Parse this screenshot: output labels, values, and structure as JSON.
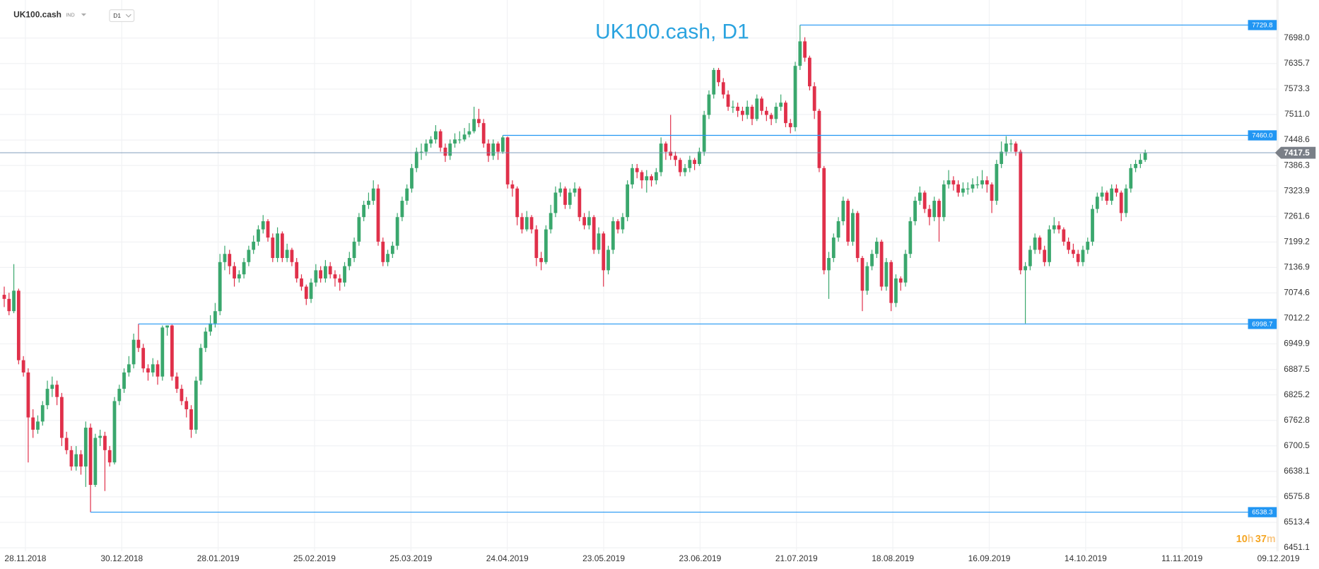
{
  "header": {
    "symbol": "UK100.cash",
    "group": "IND",
    "timeframe": "D1"
  },
  "timer": {
    "hours": "10",
    "h": "h",
    "minutes": "37",
    "m": "m"
  },
  "chart_data": {
    "type": "candlestick",
    "title": "UK100.cash, D1",
    "x_labels": [
      "28.11.2018",
      "30.12.2018",
      "28.01.2019",
      "25.02.2019",
      "25.03.2019",
      "24.04.2019",
      "23.05.2019",
      "23.06.2019",
      "21.07.2019",
      "18.08.2019",
      "16.09.2019",
      "14.10.2019",
      "11.11.2019",
      "09.12.2019"
    ],
    "ylim": [
      6442.7,
      7791.1
    ],
    "yticks": [
      {
        "value": 7698,
        "label": "7698.0"
      },
      7635.7,
      7573.3,
      {
        "value": 7511,
        "label": "7511.0"
      },
      7448.6,
      7386.3,
      7323.9,
      7261.6,
      7199.2,
      7136.9,
      7074.6,
      7012.2,
      6949.9,
      6887.5,
      6825.2,
      6762.8,
      6700.5,
      6638.1,
      6575.8,
      6513.4,
      6451.1
    ],
    "grid": true,
    "up_color": "#3aa76d",
    "down_color": "#e0304a",
    "level_color": "#2196f3",
    "last_color": "#7a7f87",
    "levels": [
      7729.8,
      {
        "value": 7460,
        "label": "7460.0"
      },
      6998.7,
      6538.3
    ],
    "last_price": 7417.5,
    "candles": [
      [
        7070,
        7090,
        7040,
        7060
      ],
      [
        7060,
        7075,
        7020,
        7030
      ],
      [
        7030,
        7145,
        7025,
        7080
      ],
      [
        7080,
        7085,
        6900,
        6910
      ],
      [
        6910,
        6920,
        6870,
        6880
      ],
      [
        6880,
        6890,
        6660,
        6770
      ],
      [
        6770,
        6790,
        6720,
        6740
      ],
      [
        6740,
        6775,
        6730,
        6760
      ],
      [
        6760,
        6810,
        6750,
        6800
      ],
      [
        6800,
        6860,
        6790,
        6840
      ],
      [
        6840,
        6870,
        6820,
        6850
      ],
      [
        6850,
        6860,
        6800,
        6820
      ],
      [
        6820,
        6830,
        6700,
        6720
      ],
      [
        6720,
        6735,
        6680,
        6690
      ],
      [
        6690,
        6700,
        6640,
        6650
      ],
      [
        6650,
        6700,
        6640,
        6680
      ],
      [
        6680,
        6690,
        6630,
        6650
      ],
      [
        6650,
        6760,
        6600,
        6745
      ],
      [
        6745,
        6755,
        6538.3,
        6605
      ],
      [
        6605,
        6730,
        6600,
        6720
      ],
      [
        6720,
        6740,
        6700,
        6725
      ],
      [
        6725,
        6735,
        6590,
        6690
      ],
      [
        6690,
        6700,
        6650,
        6660
      ],
      [
        6660,
        6820,
        6655,
        6810
      ],
      [
        6810,
        6850,
        6800,
        6840
      ],
      [
        6840,
        6890,
        6830,
        6880
      ],
      [
        6880,
        6920,
        6870,
        6900
      ],
      [
        6900,
        6975,
        6890,
        6960
      ],
      [
        6960,
        6998.7,
        6930,
        6940
      ],
      [
        6940,
        6950,
        6880,
        6890
      ],
      [
        6890,
        6900,
        6860,
        6880
      ],
      [
        6880,
        6915,
        6870,
        6900
      ],
      [
        6900,
        6910,
        6850,
        6870
      ],
      [
        6870,
        6995,
        6860,
        6990
      ],
      [
        6990,
        6995,
        6970,
        6995
      ],
      [
        6995,
        6997,
        6860,
        6870
      ],
      [
        6870,
        6880,
        6830,
        6840
      ],
      [
        6840,
        6850,
        6800,
        6810
      ],
      [
        6810,
        6820,
        6770,
        6790
      ],
      [
        6790,
        6800,
        6720,
        6740
      ],
      [
        6740,
        6870,
        6730,
        6860
      ],
      [
        6860,
        6950,
        6850,
        6940
      ],
      [
        6940,
        6990,
        6930,
        6980
      ],
      [
        6980,
        7020,
        6970,
        7000
      ],
      [
        7000,
        7050,
        6990,
        7030
      ],
      [
        7030,
        7170,
        7020,
        7150
      ],
      [
        7150,
        7190,
        7130,
        7170
      ],
      [
        7170,
        7180,
        7120,
        7140
      ],
      [
        7140,
        7150,
        7090,
        7110
      ],
      [
        7110,
        7130,
        7100,
        7120
      ],
      [
        7120,
        7160,
        7110,
        7150
      ],
      [
        7150,
        7190,
        7140,
        7180
      ],
      [
        7180,
        7215,
        7170,
        7200
      ],
      [
        7200,
        7240,
        7190,
        7230
      ],
      [
        7230,
        7265,
        7220,
        7250
      ],
      [
        7250,
        7255,
        7200,
        7210
      ],
      [
        7210,
        7220,
        7150,
        7160
      ],
      [
        7160,
        7235,
        7150,
        7220
      ],
      [
        7220,
        7225,
        7150,
        7160
      ],
      [
        7160,
        7195,
        7150,
        7180
      ],
      [
        7180,
        7185,
        7140,
        7150
      ],
      [
        7150,
        7160,
        7100,
        7110
      ],
      [
        7110,
        7120,
        7080,
        7090
      ],
      [
        7090,
        7095,
        7045,
        7060
      ],
      [
        7060,
        7110,
        7050,
        7100
      ],
      [
        7100,
        7145,
        7090,
        7130
      ],
      [
        7130,
        7140,
        7100,
        7110
      ],
      [
        7110,
        7155,
        7100,
        7140
      ],
      [
        7140,
        7150,
        7110,
        7120
      ],
      [
        7120,
        7130,
        7090,
        7110
      ],
      [
        7110,
        7120,
        7080,
        7100
      ],
      [
        7100,
        7150,
        7090,
        7140
      ],
      [
        7140,
        7175,
        7130,
        7160
      ],
      [
        7160,
        7210,
        7150,
        7200
      ],
      [
        7200,
        7270,
        7190,
        7260
      ],
      [
        7260,
        7300,
        7250,
        7290
      ],
      [
        7290,
        7320,
        7280,
        7300
      ],
      [
        7300,
        7350,
        7290,
        7330
      ],
      [
        7330,
        7340,
        7190,
        7200
      ],
      [
        7200,
        7210,
        7140,
        7150
      ],
      [
        7150,
        7180,
        7140,
        7170
      ],
      [
        7170,
        7200,
        7160,
        7190
      ],
      [
        7190,
        7270,
        7180,
        7260
      ],
      [
        7260,
        7310,
        7250,
        7300
      ],
      [
        7300,
        7340,
        7290,
        7330
      ],
      [
        7330,
        7390,
        7320,
        7380
      ],
      [
        7380,
        7430,
        7370,
        7420
      ],
      [
        7420,
        7440,
        7400,
        7420
      ],
      [
        7420,
        7450,
        7410,
        7440
      ],
      [
        7440,
        7458,
        7430,
        7450
      ],
      [
        7450,
        7485,
        7440,
        7470
      ],
      [
        7470,
        7475,
        7420,
        7430
      ],
      [
        7430,
        7440,
        7395,
        7410
      ],
      [
        7410,
        7450,
        7400,
        7440
      ],
      [
        7440,
        7465,
        7430,
        7450
      ],
      [
        7450,
        7470,
        7440,
        7450
      ],
      [
        7450,
        7478,
        7445,
        7462
      ],
      [
        7462,
        7490,
        7455,
        7470
      ],
      [
        7470,
        7530,
        7465,
        7500
      ],
      [
        7500,
        7525,
        7480,
        7490
      ],
      [
        7490,
        7500,
        7430,
        7440
      ],
      [
        7440,
        7450,
        7395,
        7410
      ],
      [
        7410,
        7450,
        7400,
        7440
      ],
      [
        7440,
        7445,
        7400,
        7420
      ],
      [
        7420,
        7460,
        7415,
        7455
      ],
      [
        7455,
        7457,
        7330,
        7340
      ],
      [
        7340,
        7350,
        7310,
        7330
      ],
      [
        7330,
        7335,
        7240,
        7260
      ],
      [
        7260,
        7270,
        7220,
        7230
      ],
      [
        7230,
        7275,
        7225,
        7260
      ],
      [
        7260,
        7265,
        7220,
        7230
      ],
      [
        7230,
        7240,
        7140,
        7160
      ],
      [
        7160,
        7175,
        7130,
        7150
      ],
      [
        7150,
        7240,
        7145,
        7230
      ],
      [
        7230,
        7290,
        7220,
        7270
      ],
      [
        7270,
        7335,
        7260,
        7320
      ],
      [
        7320,
        7345,
        7310,
        7330
      ],
      [
        7330,
        7335,
        7280,
        7290
      ],
      [
        7290,
        7330,
        7280,
        7320
      ],
      [
        7320,
        7345,
        7310,
        7330
      ],
      [
        7330,
        7335,
        7250,
        7260
      ],
      [
        7260,
        7270,
        7230,
        7240
      ],
      [
        7240,
        7275,
        7230,
        7260
      ],
      [
        7260,
        7265,
        7170,
        7180
      ],
      [
        7180,
        7235,
        7170,
        7220
      ],
      [
        7220,
        7225,
        7090,
        7130
      ],
      [
        7130,
        7190,
        7120,
        7180
      ],
      [
        7180,
        7260,
        7170,
        7250
      ],
      [
        7250,
        7255,
        7220,
        7230
      ],
      [
        7230,
        7270,
        7220,
        7260
      ],
      [
        7260,
        7350,
        7250,
        7340
      ],
      [
        7340,
        7390,
        7330,
        7380
      ],
      [
        7380,
        7390,
        7355,
        7370
      ],
      [
        7370,
        7375,
        7330,
        7350
      ],
      [
        7350,
        7375,
        7320,
        7360
      ],
      [
        7360,
        7365,
        7335,
        7350
      ],
      [
        7350,
        7380,
        7340,
        7370
      ],
      [
        7370,
        7455,
        7360,
        7440
      ],
      [
        7440,
        7445,
        7400,
        7420
      ],
      [
        7420,
        7510,
        7400,
        7410
      ],
      [
        7410,
        7420,
        7385,
        7400
      ],
      [
        7400,
        7405,
        7360,
        7370
      ],
      [
        7370,
        7390,
        7360,
        7380
      ],
      [
        7380,
        7410,
        7370,
        7400
      ],
      [
        7400,
        7405,
        7375,
        7390
      ],
      [
        7390,
        7430,
        7385,
        7420
      ],
      [
        7420,
        7520,
        7410,
        7510
      ],
      [
        7510,
        7570,
        7500,
        7560
      ],
      [
        7560,
        7625,
        7550,
        7620
      ],
      [
        7620,
        7625,
        7580,
        7590
      ],
      [
        7590,
        7600,
        7550,
        7560
      ],
      [
        7560,
        7570,
        7520,
        7530
      ],
      [
        7530,
        7545,
        7515,
        7530
      ],
      [
        7530,
        7540,
        7505,
        7520
      ],
      [
        7520,
        7530,
        7495,
        7510
      ],
      [
        7510,
        7545,
        7500,
        7530
      ],
      [
        7530,
        7535,
        7485,
        7500
      ],
      [
        7500,
        7560,
        7495,
        7550
      ],
      [
        7550,
        7555,
        7510,
        7520
      ],
      [
        7520,
        7530,
        7495,
        7510
      ],
      [
        7510,
        7515,
        7485,
        7500
      ],
      [
        7500,
        7540,
        7490,
        7530
      ],
      [
        7530,
        7560,
        7520,
        7540
      ],
      [
        7540,
        7545,
        7480,
        7490
      ],
      [
        7490,
        7500,
        7465,
        7480
      ],
      [
        7480,
        7640,
        7470,
        7630
      ],
      [
        7630,
        7729.8,
        7620,
        7690
      ],
      [
        7690,
        7700,
        7640,
        7650
      ],
      [
        7650,
        7655,
        7570,
        7580
      ],
      [
        7580,
        7590,
        7500,
        7520
      ],
      [
        7520,
        7525,
        7370,
        7380
      ],
      [
        7380,
        7385,
        7120,
        7130
      ],
      [
        7130,
        7175,
        7060,
        7160
      ],
      [
        7160,
        7220,
        7150,
        7210
      ],
      [
        7210,
        7260,
        7200,
        7250
      ],
      [
        7250,
        7310,
        7240,
        7300
      ],
      [
        7300,
        7305,
        7190,
        7200
      ],
      [
        7200,
        7280,
        7190,
        7270
      ],
      [
        7270,
        7275,
        7150,
        7160
      ],
      [
        7160,
        7165,
        7030,
        7080
      ],
      [
        7080,
        7150,
        7070,
        7140
      ],
      [
        7140,
        7180,
        7130,
        7170
      ],
      [
        7170,
        7210,
        7160,
        7200
      ],
      [
        7200,
        7205,
        7080,
        7090
      ],
      [
        7090,
        7160,
        7080,
        7150
      ],
      [
        7150,
        7155,
        7030,
        7050
      ],
      [
        7050,
        7120,
        7040,
        7110
      ],
      [
        7110,
        7115,
        7080,
        7100
      ],
      [
        7100,
        7180,
        7090,
        7170
      ],
      [
        7170,
        7260,
        7160,
        7250
      ],
      [
        7250,
        7310,
        7240,
        7300
      ],
      [
        7300,
        7335,
        7290,
        7320
      ],
      [
        7320,
        7325,
        7270,
        7280
      ],
      [
        7280,
        7290,
        7240,
        7260
      ],
      [
        7260,
        7310,
        7250,
        7300
      ],
      [
        7300,
        7305,
        7200,
        7260
      ],
      [
        7260,
        7350,
        7250,
        7340
      ],
      [
        7340,
        7375,
        7330,
        7350
      ],
      [
        7350,
        7360,
        7325,
        7340
      ],
      [
        7340,
        7350,
        7310,
        7320
      ],
      [
        7320,
        7345,
        7310,
        7330
      ],
      [
        7330,
        7345,
        7315,
        7330
      ],
      [
        7330,
        7355,
        7320,
        7340
      ],
      [
        7340,
        7360,
        7330,
        7340
      ],
      [
        7340,
        7375,
        7330,
        7350
      ],
      [
        7350,
        7360,
        7320,
        7340
      ],
      [
        7340,
        7345,
        7270,
        7300
      ],
      [
        7300,
        7400,
        7290,
        7390
      ],
      [
        7390,
        7445,
        7380,
        7420
      ],
      [
        7420,
        7458,
        7410,
        7440
      ],
      [
        7440,
        7450,
        7420,
        7440
      ],
      [
        7440,
        7445,
        7410,
        7420
      ],
      [
        7420,
        7425,
        7120,
        7130
      ],
      [
        7130,
        7150,
        7000,
        7140
      ],
      [
        7140,
        7190,
        7130,
        7180
      ],
      [
        7180,
        7220,
        7170,
        7210
      ],
      [
        7210,
        7215,
        7170,
        7180
      ],
      [
        7180,
        7190,
        7140,
        7150
      ],
      [
        7150,
        7240,
        7140,
        7230
      ],
      [
        7230,
        7260,
        7220,
        7240
      ],
      [
        7240,
        7250,
        7220,
        7230
      ],
      [
        7230,
        7235,
        7190,
        7200
      ],
      [
        7200,
        7210,
        7170,
        7180
      ],
      [
        7180,
        7195,
        7160,
        7170
      ],
      [
        7170,
        7180,
        7140,
        7150
      ],
      [
        7150,
        7190,
        7140,
        7180
      ],
      [
        7180,
        7210,
        7170,
        7200
      ],
      [
        7200,
        7290,
        7190,
        7280
      ],
      [
        7280,
        7320,
        7270,
        7310
      ],
      [
        7310,
        7335,
        7300,
        7320
      ],
      [
        7320,
        7325,
        7290,
        7300
      ],
      [
        7300,
        7340,
        7290,
        7330
      ],
      [
        7330,
        7340,
        7310,
        7320
      ],
      [
        7320,
        7325,
        7250,
        7270
      ],
      [
        7270,
        7340,
        7260,
        7330
      ],
      [
        7330,
        7390,
        7320,
        7380
      ],
      [
        7380,
        7400,
        7370,
        7390
      ],
      [
        7390,
        7415,
        7380,
        7400
      ],
      [
        7400,
        7425,
        7395,
        7417.5
      ]
    ]
  }
}
